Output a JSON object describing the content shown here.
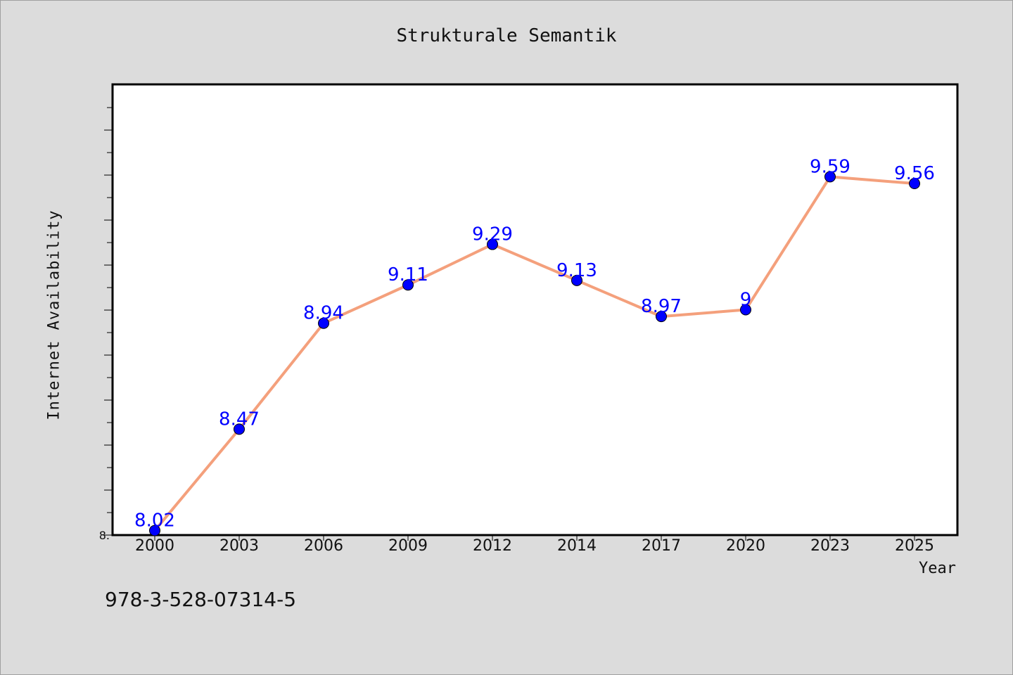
{
  "title": "Strukturale Semantik",
  "footer_text": "978-3-528-07314-5",
  "chart_data": {
    "type": "line",
    "title": "Strukturale Semantik",
    "xlabel": "Year",
    "ylabel": "Internet Availability",
    "categories": [
      "2000",
      "2003",
      "2006",
      "2009",
      "2012",
      "2014",
      "2017",
      "2020",
      "2023",
      "2025"
    ],
    "series": [
      {
        "values": [
          8.02,
          8.47,
          8.94,
          9.11,
          9.29,
          9.13,
          8.97,
          9,
          9.59,
          9.56
        ],
        "labels": [
          "8.02",
          "8.47",
          "8.94",
          "9.11",
          "9.29",
          "9.13",
          "8.97",
          "9",
          "9.59",
          "9.56"
        ],
        "line_color": "#f4a07c",
        "marker_color": "#0000ff"
      }
    ],
    "ylim": [
      8,
      10
    ],
    "y_tick_labels": [
      {
        "value": 8,
        "label": "8."
      }
    ],
    "grid": false,
    "background": "#ffffff"
  }
}
